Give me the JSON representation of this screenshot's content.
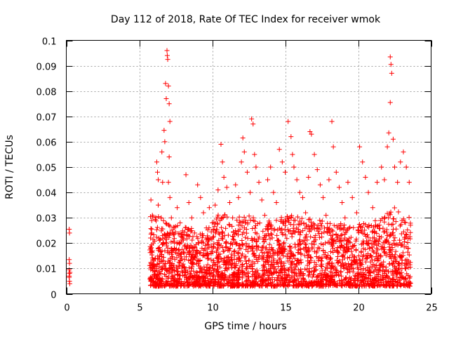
{
  "chart_data": {
    "type": "scatter",
    "title": "Day 112 of 2018, Rate Of TEC Index for receiver wmok",
    "xlabel": "GPS time / hours",
    "ylabel": "ROTI / TECUs",
    "xlim": [
      0,
      25
    ],
    "ylim": [
      0,
      0.1
    ],
    "x_ticks": [
      0,
      5,
      10,
      15,
      20,
      25
    ],
    "x_tick_labels": [
      "0",
      "5",
      "10",
      "15",
      "20",
      "25"
    ],
    "y_ticks": [
      0,
      0.01,
      0.02,
      0.03,
      0.04,
      0.05,
      0.06,
      0.07,
      0.08,
      0.09,
      0.1
    ],
    "y_tick_labels": [
      "0",
      "0.01",
      "0.02",
      "0.03",
      "0.04",
      "0.05",
      "0.06",
      "0.07",
      "0.08",
      "0.09",
      "0.1"
    ],
    "grid": true,
    "marker": "+",
    "color": "#ff0000",
    "series": [
      {
        "name": "ROTI",
        "points": [
          [
            0.2,
            0.0255
          ],
          [
            0.22,
            0.024
          ],
          [
            0.2,
            0.0135
          ],
          [
            0.22,
            0.012
          ],
          [
            0.2,
            0.0095
          ],
          [
            0.22,
            0.008
          ],
          [
            0.2,
            0.0065
          ],
          [
            0.22,
            0.005
          ],
          [
            0.24,
            0.004
          ],
          [
            0.2,
            0.007
          ],
          [
            0.25,
            0.0085
          ],
          [
            5.8,
            0.037
          ],
          [
            5.9,
            0.031
          ],
          [
            5.85,
            0.024
          ],
          [
            5.9,
            0.017
          ],
          [
            5.95,
            0.01
          ],
          [
            6.0,
            0.006
          ],
          [
            6.05,
            0.009
          ],
          [
            6.1,
            0.014
          ],
          [
            6.2,
            0.052
          ],
          [
            6.25,
            0.048
          ],
          [
            6.3,
            0.045
          ],
          [
            6.3,
            0.035
          ],
          [
            6.35,
            0.022
          ],
          [
            6.4,
            0.015
          ],
          [
            6.5,
            0.03
          ],
          [
            6.55,
            0.056
          ],
          [
            6.6,
            0.044
          ],
          [
            6.7,
            0.0645
          ],
          [
            6.75,
            0.06
          ],
          [
            6.8,
            0.083
          ],
          [
            6.85,
            0.077
          ],
          [
            6.9,
            0.096
          ],
          [
            6.92,
            0.094
          ],
          [
            6.95,
            0.0925
          ],
          [
            7.0,
            0.082
          ],
          [
            7.05,
            0.075
          ],
          [
            7.1,
            0.068
          ],
          [
            7.05,
            0.054
          ],
          [
            7.0,
            0.044
          ],
          [
            7.1,
            0.038
          ],
          [
            7.2,
            0.03
          ],
          [
            7.3,
            0.024
          ],
          [
            7.4,
            0.018
          ],
          [
            7.6,
            0.034
          ],
          [
            7.8,
            0.028
          ],
          [
            8.0,
            0.022
          ],
          [
            8.2,
            0.047
          ],
          [
            8.4,
            0.036
          ],
          [
            8.6,
            0.03
          ],
          [
            8.8,
            0.024
          ],
          [
            9.0,
            0.043
          ],
          [
            9.2,
            0.038
          ],
          [
            9.4,
            0.032
          ],
          [
            9.6,
            0.026
          ],
          [
            9.8,
            0.034
          ],
          [
            10.0,
            0.028
          ],
          [
            10.2,
            0.035
          ],
          [
            10.4,
            0.041
          ],
          [
            10.6,
            0.059
          ],
          [
            10.7,
            0.052
          ],
          [
            10.8,
            0.046
          ],
          [
            11.0,
            0.042
          ],
          [
            11.2,
            0.036
          ],
          [
            11.4,
            0.03
          ],
          [
            11.6,
            0.043
          ],
          [
            11.8,
            0.038
          ],
          [
            12.0,
            0.052
          ],
          [
            12.1,
            0.0615
          ],
          [
            12.2,
            0.056
          ],
          [
            12.4,
            0.048
          ],
          [
            12.6,
            0.04
          ],
          [
            12.7,
            0.069
          ],
          [
            12.8,
            0.067
          ],
          [
            12.9,
            0.055
          ],
          [
            13.0,
            0.05
          ],
          [
            13.2,
            0.044
          ],
          [
            13.4,
            0.037
          ],
          [
            13.6,
            0.031
          ],
          [
            13.8,
            0.045
          ],
          [
            14.0,
            0.05
          ],
          [
            14.2,
            0.04
          ],
          [
            14.4,
            0.036
          ],
          [
            14.6,
            0.057
          ],
          [
            14.8,
            0.052
          ],
          [
            15.0,
            0.048
          ],
          [
            15.2,
            0.068
          ],
          [
            15.4,
            0.062
          ],
          [
            15.5,
            0.055
          ],
          [
            15.6,
            0.05
          ],
          [
            15.8,
            0.045
          ],
          [
            16.0,
            0.04
          ],
          [
            16.2,
            0.038
          ],
          [
            16.4,
            0.032
          ],
          [
            16.6,
            0.046
          ],
          [
            16.7,
            0.064
          ],
          [
            16.8,
            0.063
          ],
          [
            17.0,
            0.055
          ],
          [
            17.2,
            0.049
          ],
          [
            17.4,
            0.043
          ],
          [
            17.6,
            0.038
          ],
          [
            17.8,
            0.031
          ],
          [
            18.0,
            0.045
          ],
          [
            18.2,
            0.068
          ],
          [
            18.3,
            0.058
          ],
          [
            18.5,
            0.048
          ],
          [
            18.7,
            0.042
          ],
          [
            18.9,
            0.036
          ],
          [
            19.1,
            0.03
          ],
          [
            19.3,
            0.044
          ],
          [
            19.6,
            0.038
          ],
          [
            19.9,
            0.032
          ],
          [
            20.1,
            0.058
          ],
          [
            20.3,
            0.052
          ],
          [
            20.5,
            0.046
          ],
          [
            20.7,
            0.04
          ],
          [
            21.0,
            0.034
          ],
          [
            21.3,
            0.044
          ],
          [
            21.6,
            0.05
          ],
          [
            21.8,
            0.045
          ],
          [
            22.0,
            0.058
          ],
          [
            22.1,
            0.0635
          ],
          [
            22.2,
            0.0935
          ],
          [
            22.25,
            0.0905
          ],
          [
            22.3,
            0.087
          ],
          [
            22.2,
            0.0755
          ],
          [
            22.4,
            0.061
          ],
          [
            22.5,
            0.05
          ],
          [
            22.7,
            0.044
          ],
          [
            22.9,
            0.052
          ],
          [
            23.1,
            0.056
          ],
          [
            23.3,
            0.05
          ],
          [
            23.5,
            0.044
          ]
        ]
      }
    ],
    "dense_band": {
      "x_range": [
        5.7,
        23.6
      ],
      "baseline": 0.003,
      "envelope": [
        [
          5.7,
          0.032
        ],
        [
          6.5,
          0.03
        ],
        [
          7.5,
          0.027
        ],
        [
          8.5,
          0.026
        ],
        [
          9.5,
          0.024
        ],
        [
          10.5,
          0.032
        ],
        [
          11.5,
          0.03
        ],
        [
          12.5,
          0.031
        ],
        [
          13.5,
          0.028
        ],
        [
          14.5,
          0.03
        ],
        [
          15.5,
          0.031
        ],
        [
          16.5,
          0.03
        ],
        [
          17.5,
          0.029
        ],
        [
          18.5,
          0.028
        ],
        [
          19.5,
          0.027
        ],
        [
          20.5,
          0.028
        ],
        [
          21.5,
          0.03
        ],
        [
          22.5,
          0.034
        ],
        [
          23.6,
          0.03
        ]
      ],
      "count": 2600
    }
  }
}
